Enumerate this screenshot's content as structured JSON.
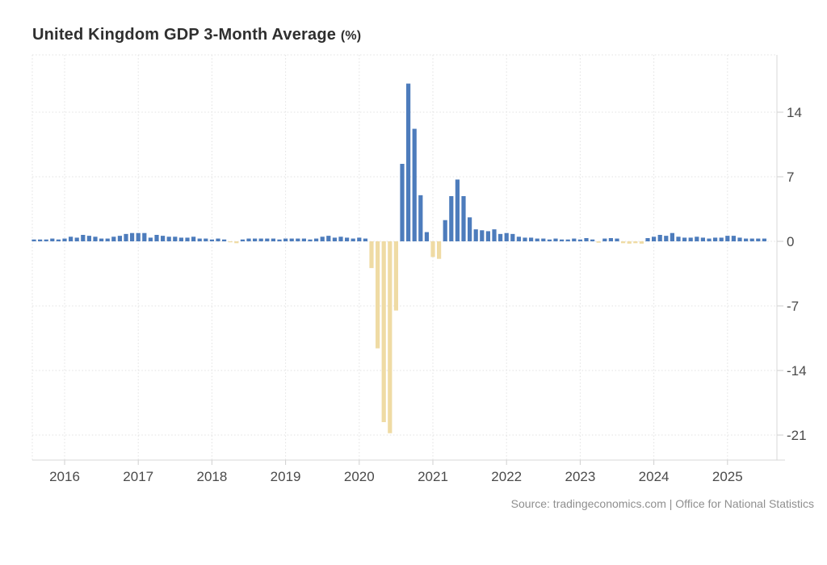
{
  "chart": {
    "title": "United Kingdom GDP 3-Month Average",
    "unit": "(%)",
    "source": "Source: tradingeconomics.com | Office for National Statistics"
  },
  "chart_data": {
    "type": "bar",
    "title": "United Kingdom GDP 3-Month Average (%)",
    "frequency": "monthly",
    "xlabel": "",
    "ylabel": "%",
    "grid": "dotted",
    "legend": "none",
    "ylim": [
      -23.5,
      20.2
    ],
    "y_ticks": [
      14,
      7,
      0,
      -7,
      -14,
      -21
    ],
    "y_tick_labels": [
      "14",
      "7",
      "0",
      "-7",
      "-14",
      "-21"
    ],
    "year_labels": [
      "2016",
      "2017",
      "2018",
      "2019",
      "2020",
      "2021",
      "2022",
      "2023",
      "2024",
      "2025"
    ],
    "positive_color": "#4d7cbc",
    "negative_color": "#efdba4",
    "x": [
      "2015-08",
      "2015-09",
      "2015-10",
      "2015-11",
      "2015-12",
      "2016-01",
      "2016-02",
      "2016-03",
      "2016-04",
      "2016-05",
      "2016-06",
      "2016-07",
      "2016-08",
      "2016-09",
      "2016-10",
      "2016-11",
      "2016-12",
      "2017-01",
      "2017-02",
      "2017-03",
      "2017-04",
      "2017-05",
      "2017-06",
      "2017-07",
      "2017-08",
      "2017-09",
      "2017-10",
      "2017-11",
      "2017-12",
      "2018-01",
      "2018-02",
      "2018-03",
      "2018-04",
      "2018-05",
      "2018-06",
      "2018-07",
      "2018-08",
      "2018-09",
      "2018-10",
      "2018-11",
      "2018-12",
      "2019-01",
      "2019-02",
      "2019-03",
      "2019-04",
      "2019-05",
      "2019-06",
      "2019-07",
      "2019-08",
      "2019-09",
      "2019-10",
      "2019-11",
      "2019-12",
      "2020-01",
      "2020-02",
      "2020-03",
      "2020-04",
      "2020-05",
      "2020-06",
      "2020-07",
      "2020-08",
      "2020-09",
      "2020-10",
      "2020-11",
      "2020-12",
      "2021-01",
      "2021-02",
      "2021-03",
      "2021-04",
      "2021-05",
      "2021-06",
      "2021-07",
      "2021-08",
      "2021-09",
      "2021-10",
      "2021-11",
      "2021-12",
      "2022-01",
      "2022-02",
      "2022-03",
      "2022-04",
      "2022-05",
      "2022-06",
      "2022-07",
      "2022-08",
      "2022-09",
      "2022-10",
      "2022-11",
      "2022-12",
      "2023-01",
      "2023-02",
      "2023-03",
      "2023-04",
      "2023-05",
      "2023-06",
      "2023-07",
      "2023-08",
      "2023-09",
      "2023-10",
      "2023-11",
      "2023-12",
      "2024-01",
      "2024-02",
      "2024-03",
      "2024-04",
      "2024-05",
      "2024-06",
      "2024-07",
      "2024-08",
      "2024-09",
      "2024-10",
      "2024-11",
      "2024-12",
      "2025-01",
      "2025-02",
      "2025-03",
      "2025-04",
      "2025-05",
      "2025-06",
      "2025-07"
    ],
    "values": [
      0.2,
      0.2,
      0.2,
      0.3,
      0.2,
      0.3,
      0.5,
      0.4,
      0.7,
      0.6,
      0.5,
      0.3,
      0.3,
      0.5,
      0.6,
      0.8,
      0.9,
      0.9,
      0.9,
      0.4,
      0.7,
      0.6,
      0.5,
      0.5,
      0.4,
      0.4,
      0.5,
      0.3,
      0.3,
      0.2,
      0.3,
      0.2,
      -0.1,
      -0.2,
      0.2,
      0.3,
      0.3,
      0.3,
      0.3,
      0.3,
      0.2,
      0.3,
      0.3,
      0.3,
      0.3,
      0.2,
      0.3,
      0.5,
      0.6,
      0.4,
      0.5,
      0.4,
      0.3,
      0.4,
      0.3,
      -2.9,
      -11.6,
      -19.6,
      -20.8,
      -7.5,
      8.4,
      17.1,
      12.2,
      5.0,
      1.0,
      -1.7,
      -1.9,
      2.3,
      4.9,
      6.7,
      4.9,
      2.6,
      1.3,
      1.2,
      1.1,
      1.3,
      0.8,
      0.9,
      0.8,
      0.5,
      0.4,
      0.4,
      0.3,
      0.3,
      0.2,
      0.3,
      0.2,
      0.2,
      0.3,
      0.2,
      0.35,
      0.2,
      -0.15,
      0.3,
      0.35,
      0.3,
      -0.2,
      -0.25,
      -0.2,
      -0.25,
      0.35,
      0.5,
      0.7,
      0.6,
      0.9,
      0.5,
      0.4,
      0.4,
      0.5,
      0.4,
      0.3,
      0.4,
      0.4,
      0.6,
      0.6,
      0.4,
      0.3,
      0.3,
      0.3,
      0.3
    ]
  }
}
